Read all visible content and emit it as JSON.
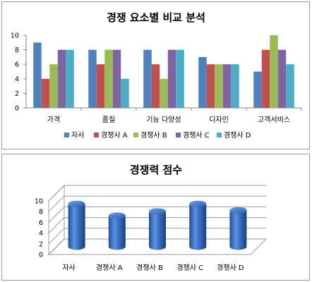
{
  "chart_data": [
    {
      "type": "bar",
      "title": "경쟁 요소별 비교 분석",
      "categories": [
        "가격",
        "품질",
        "기능 다양성",
        "디자인",
        "고객서비스"
      ],
      "series": [
        {
          "name": "자사",
          "values": [
            9,
            8,
            8,
            7,
            5
          ],
          "color": "#4f81bd"
        },
        {
          "name": "경쟁사 A",
          "values": [
            4,
            6,
            6,
            6,
            8
          ],
          "color": "#c0504d"
        },
        {
          "name": "경쟁사 B",
          "values": [
            6,
            8,
            4,
            6,
            10
          ],
          "color": "#9bbb59"
        },
        {
          "name": "경쟁사 C",
          "values": [
            8,
            8,
            8,
            6,
            8
          ],
          "color": "#8064a2"
        },
        {
          "name": "경쟁사 D",
          "values": [
            8,
            4,
            8,
            6,
            6
          ],
          "color": "#4bacc6"
        }
      ],
      "ylim": [
        0,
        10
      ],
      "yticks": [
        0,
        2,
        4,
        6,
        8,
        10
      ],
      "legend": "bottom",
      "grid": false
    },
    {
      "type": "bar",
      "style": "3d-cylinder",
      "title": "경쟁력 점수",
      "categories": [
        "자사",
        "경쟁사 A",
        "경쟁사 B",
        "경쟁사 C",
        "경쟁사 D"
      ],
      "values": [
        8,
        5.8,
        6.6,
        8,
        6.8
      ],
      "color": "#3c72c4",
      "ylim": [
        0,
        10
      ],
      "yticks": [
        0,
        2,
        4,
        6,
        8,
        10
      ],
      "grid": true
    }
  ]
}
